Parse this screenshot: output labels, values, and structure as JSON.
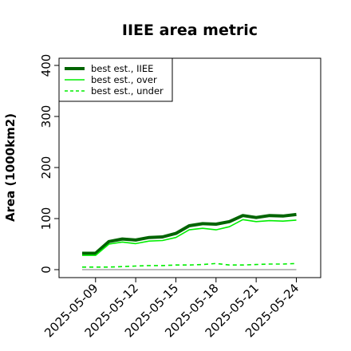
{
  "chart_data": {
    "type": "line",
    "title": "IIEE area metric",
    "xlabel": "",
    "ylabel": "Area (1000km2)",
    "x": [
      "2025-05-08",
      "2025-05-09",
      "2025-05-10",
      "2025-05-11",
      "2025-05-12",
      "2025-05-13",
      "2025-05-14",
      "2025-05-15",
      "2025-05-16",
      "2025-05-17",
      "2025-05-18",
      "2025-05-19",
      "2025-05-20",
      "2025-05-21",
      "2025-05-22",
      "2025-05-23",
      "2025-05-24"
    ],
    "x_tick_labels": [
      "2025-05-09",
      "2025-05-12",
      "2025-05-15",
      "2025-05-18",
      "2025-05-21",
      "2025-05-24"
    ],
    "ylim": [
      0,
      400
    ],
    "y_ticks": [
      0,
      100,
      200,
      300,
      400
    ],
    "grid": false,
    "legend_position": "top-left",
    "zero_line": 0,
    "series": [
      {
        "name": "best est., IIEE",
        "color": "#006400",
        "style": "solid-thick",
        "values": [
          32,
          32,
          55,
          60,
          58,
          63,
          64,
          71,
          86,
          90,
          89,
          94,
          106,
          102,
          106,
          105,
          108
        ]
      },
      {
        "name": "best est., over",
        "color": "#00ee00",
        "style": "solid",
        "values": [
          28,
          28,
          50,
          54,
          51,
          56,
          57,
          63,
          78,
          81,
          78,
          84,
          98,
          94,
          96,
          95,
          97
        ]
      },
      {
        "name": "best est., under",
        "color": "#00ee00",
        "style": "dashed",
        "values": [
          5,
          5,
          5,
          6,
          7,
          8,
          8,
          9,
          9,
          10,
          12,
          9,
          9,
          10,
          11,
          11,
          12
        ]
      }
    ]
  }
}
